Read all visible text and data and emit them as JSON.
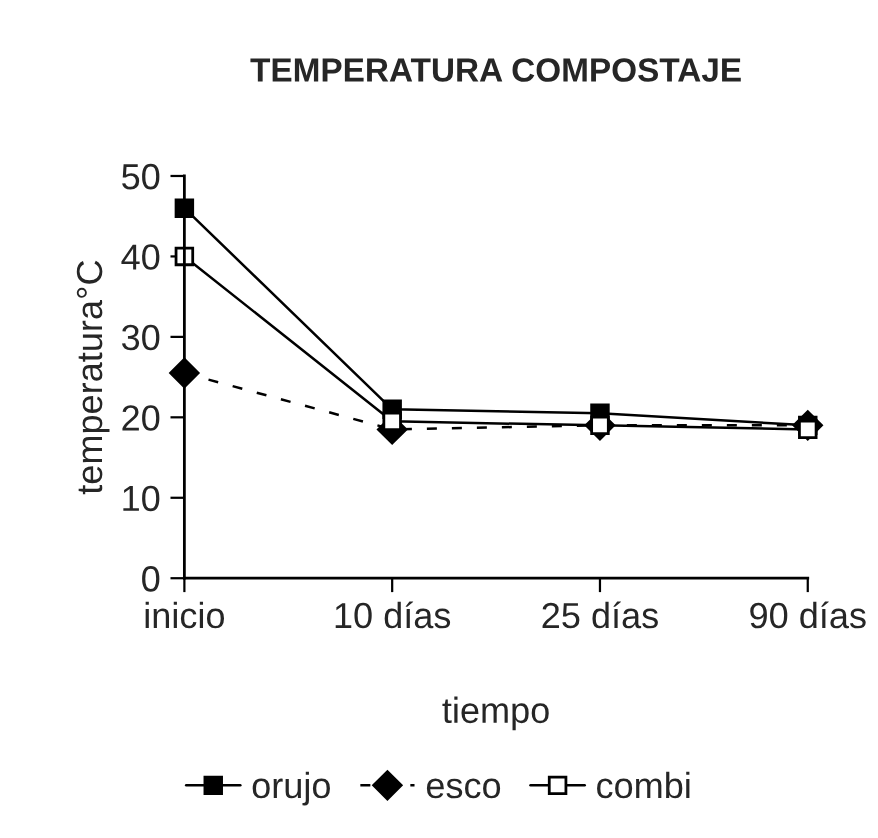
{
  "chart_data": {
    "type": "line",
    "title": "TEMPERATURA COMPOSTAJE",
    "xlabel": "tiempo",
    "ylabel": "temperatura°C",
    "categories": [
      "inicio",
      "10 días",
      "25 días",
      "90 días"
    ],
    "series": [
      {
        "name": "orujo",
        "color": "#000000",
        "marker": "square",
        "line_style": "solid",
        "values": [
          46,
          21,
          20.5,
          19
        ]
      },
      {
        "name": "esco",
        "color": "#000000",
        "marker": "diamond",
        "line_style": "dashed",
        "values": [
          25.5,
          18.5,
          19,
          19
        ]
      },
      {
        "name": "combi",
        "color": "#000000",
        "marker": "square",
        "line_style": "solid",
        "values": [
          40,
          19.5,
          19,
          18.5
        ]
      }
    ],
    "ylim": [
      0,
      50
    ],
    "yticks": [
      0,
      10,
      20,
      30,
      40,
      50
    ],
    "grid": false,
    "legend": "bottom"
  }
}
